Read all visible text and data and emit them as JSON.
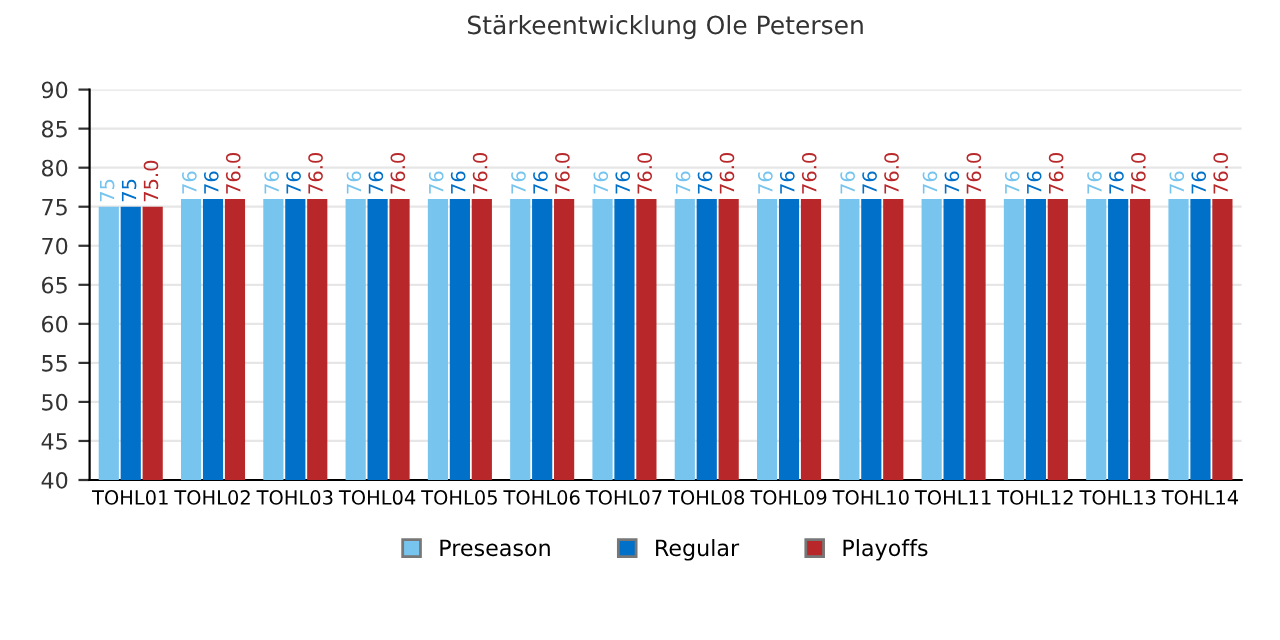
{
  "chart_data": {
    "type": "bar",
    "title": "Stärkeentwicklung Ole Petersen",
    "categories": [
      "TOHL01",
      "TOHL02",
      "TOHL03",
      "TOHL04",
      "TOHL05",
      "TOHL06",
      "TOHL07",
      "TOHL08",
      "TOHL09",
      "TOHL10",
      "TOHL11",
      "TOHL12",
      "TOHL13",
      "TOHL14"
    ],
    "series": [
      {
        "name": "Preseason",
        "color": "#77c4ee",
        "values": [
          75,
          76,
          76,
          76,
          76,
          76,
          76,
          76,
          76,
          76,
          76,
          76,
          76,
          76
        ],
        "value_labels": [
          "75",
          "76",
          "76",
          "76",
          "76",
          "76",
          "76",
          "76",
          "76",
          "76",
          "76",
          "76",
          "76",
          "76"
        ]
      },
      {
        "name": "Regular",
        "color": "#0070c8",
        "values": [
          75,
          76,
          76,
          76,
          76,
          76,
          76,
          76,
          76,
          76,
          76,
          76,
          76,
          76
        ],
        "value_labels": [
          "75",
          "76",
          "76",
          "76",
          "76",
          "76",
          "76",
          "76",
          "76",
          "76",
          "76",
          "76",
          "76",
          "76"
        ]
      },
      {
        "name": "Playoffs",
        "color": "#b8282a",
        "values": [
          75,
          76,
          76,
          76,
          76,
          76,
          76,
          76,
          76,
          76,
          76,
          76,
          76,
          76
        ],
        "value_labels": [
          "75.0",
          "76.0",
          "76.0",
          "76.0",
          "76.0",
          "76.0",
          "76.0",
          "76.0",
          "76.0",
          "76.0",
          "76.0",
          "76.0",
          "76.0",
          "76.0"
        ]
      }
    ],
    "ylim": [
      40,
      90
    ],
    "yticks": [
      40,
      45,
      50,
      55,
      60,
      65,
      70,
      75,
      80,
      85,
      90
    ],
    "grid": "y",
    "legend": "bottom"
  }
}
